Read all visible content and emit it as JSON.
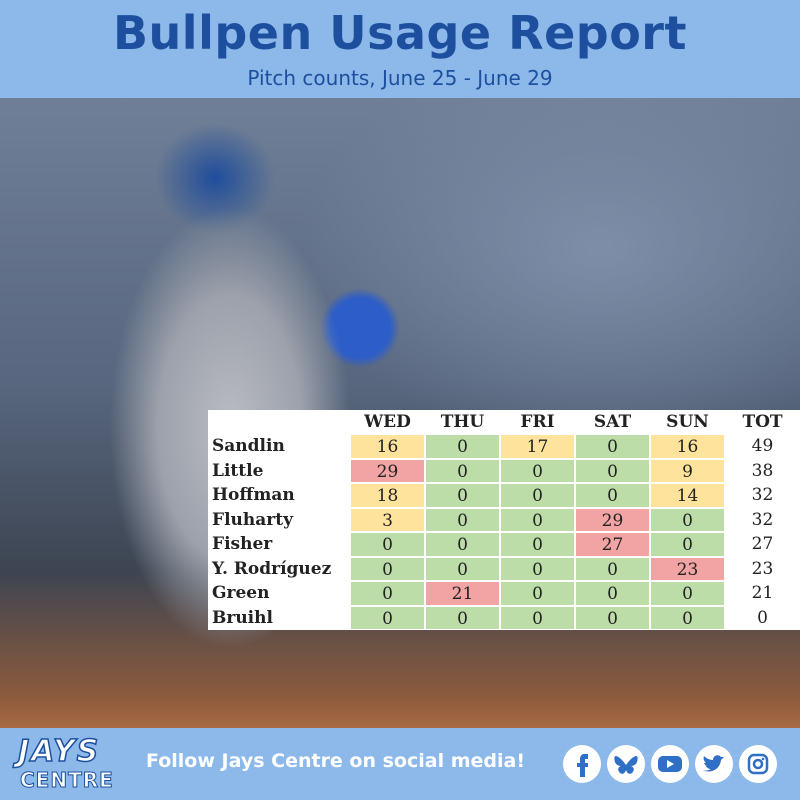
{
  "header": {
    "title": "Bullpen Usage Report",
    "subtitle": "Pitch counts, June 25 - June 29"
  },
  "table": {
    "columns": [
      "WED",
      "THU",
      "FRI",
      "SAT",
      "SUN",
      "TOT"
    ],
    "rows": [
      {
        "name": "Sandlin",
        "values": [
          16,
          0,
          17,
          0,
          16
        ],
        "total": 49,
        "colors": [
          "#fde39c",
          "#bcdca8",
          "#fde39c",
          "#bcdca8",
          "#fde39c"
        ]
      },
      {
        "name": "Little",
        "values": [
          29,
          0,
          0,
          0,
          9
        ],
        "total": 38,
        "colors": [
          "#f2a3a3",
          "#bcdca8",
          "#bcdca8",
          "#bcdca8",
          "#fde39c"
        ]
      },
      {
        "name": "Hoffman",
        "values": [
          18,
          0,
          0,
          0,
          14
        ],
        "total": 32,
        "colors": [
          "#fde39c",
          "#bcdca8",
          "#bcdca8",
          "#bcdca8",
          "#fde39c"
        ]
      },
      {
        "name": "Fluharty",
        "values": [
          3,
          0,
          0,
          29,
          0
        ],
        "total": 32,
        "colors": [
          "#fde39c",
          "#bcdca8",
          "#bcdca8",
          "#f2a3a3",
          "#bcdca8"
        ]
      },
      {
        "name": "Fisher",
        "values": [
          0,
          0,
          0,
          27,
          0
        ],
        "total": 27,
        "colors": [
          "#bcdca8",
          "#bcdca8",
          "#bcdca8",
          "#f2a3a3",
          "#bcdca8"
        ]
      },
      {
        "name": "Y. Rodríguez",
        "values": [
          0,
          0,
          0,
          0,
          23
        ],
        "total": 23,
        "colors": [
          "#bcdca8",
          "#bcdca8",
          "#bcdca8",
          "#bcdca8",
          "#f2a3a3"
        ]
      },
      {
        "name": "Green",
        "values": [
          0,
          21,
          0,
          0,
          0
        ],
        "total": 21,
        "colors": [
          "#bcdca8",
          "#f2a3a3",
          "#bcdca8",
          "#bcdca8",
          "#bcdca8"
        ]
      },
      {
        "name": "Bruihl",
        "values": [
          0,
          0,
          0,
          0,
          0
        ],
        "total": 0,
        "colors": [
          "#bcdca8",
          "#bcdca8",
          "#bcdca8",
          "#bcdca8",
          "#bcdca8"
        ]
      }
    ]
  },
  "footer": {
    "logo_top": "JAYS",
    "logo_bottom": "CENTRE",
    "text": "Follow Jays Centre on social media!"
  }
}
